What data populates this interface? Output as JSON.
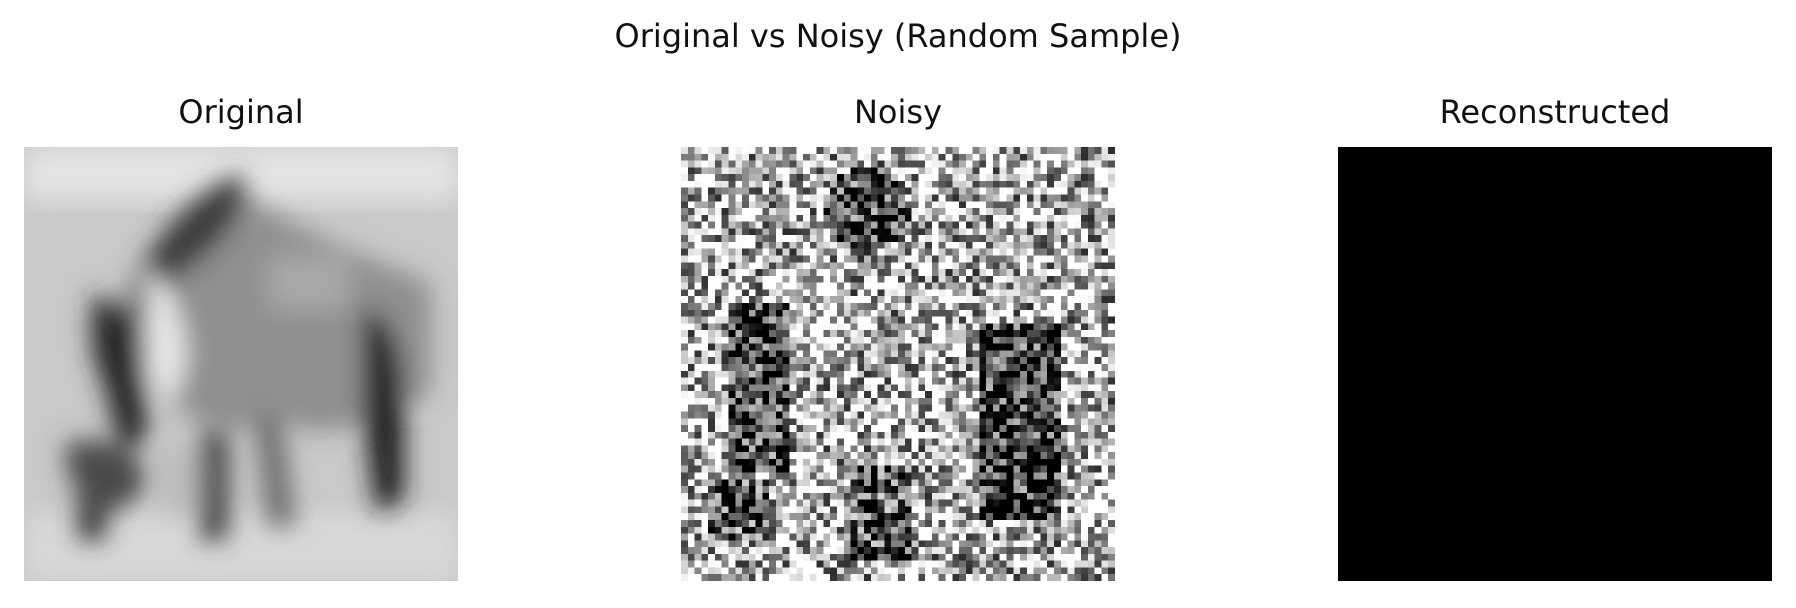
{
  "figure": {
    "title": "Original vs Noisy (Random Sample)"
  },
  "panels": [
    {
      "title": "Original",
      "image": "blurred grayscale photo of a horse grazing"
    },
    {
      "title": "Noisy",
      "image": "same horse image with heavy salt-and-pepper noise"
    },
    {
      "title": "Reconstructed",
      "image": "solid black image",
      "fill": "#000000"
    }
  ],
  "image_grid_size": 32,
  "colormap": "gray"
}
